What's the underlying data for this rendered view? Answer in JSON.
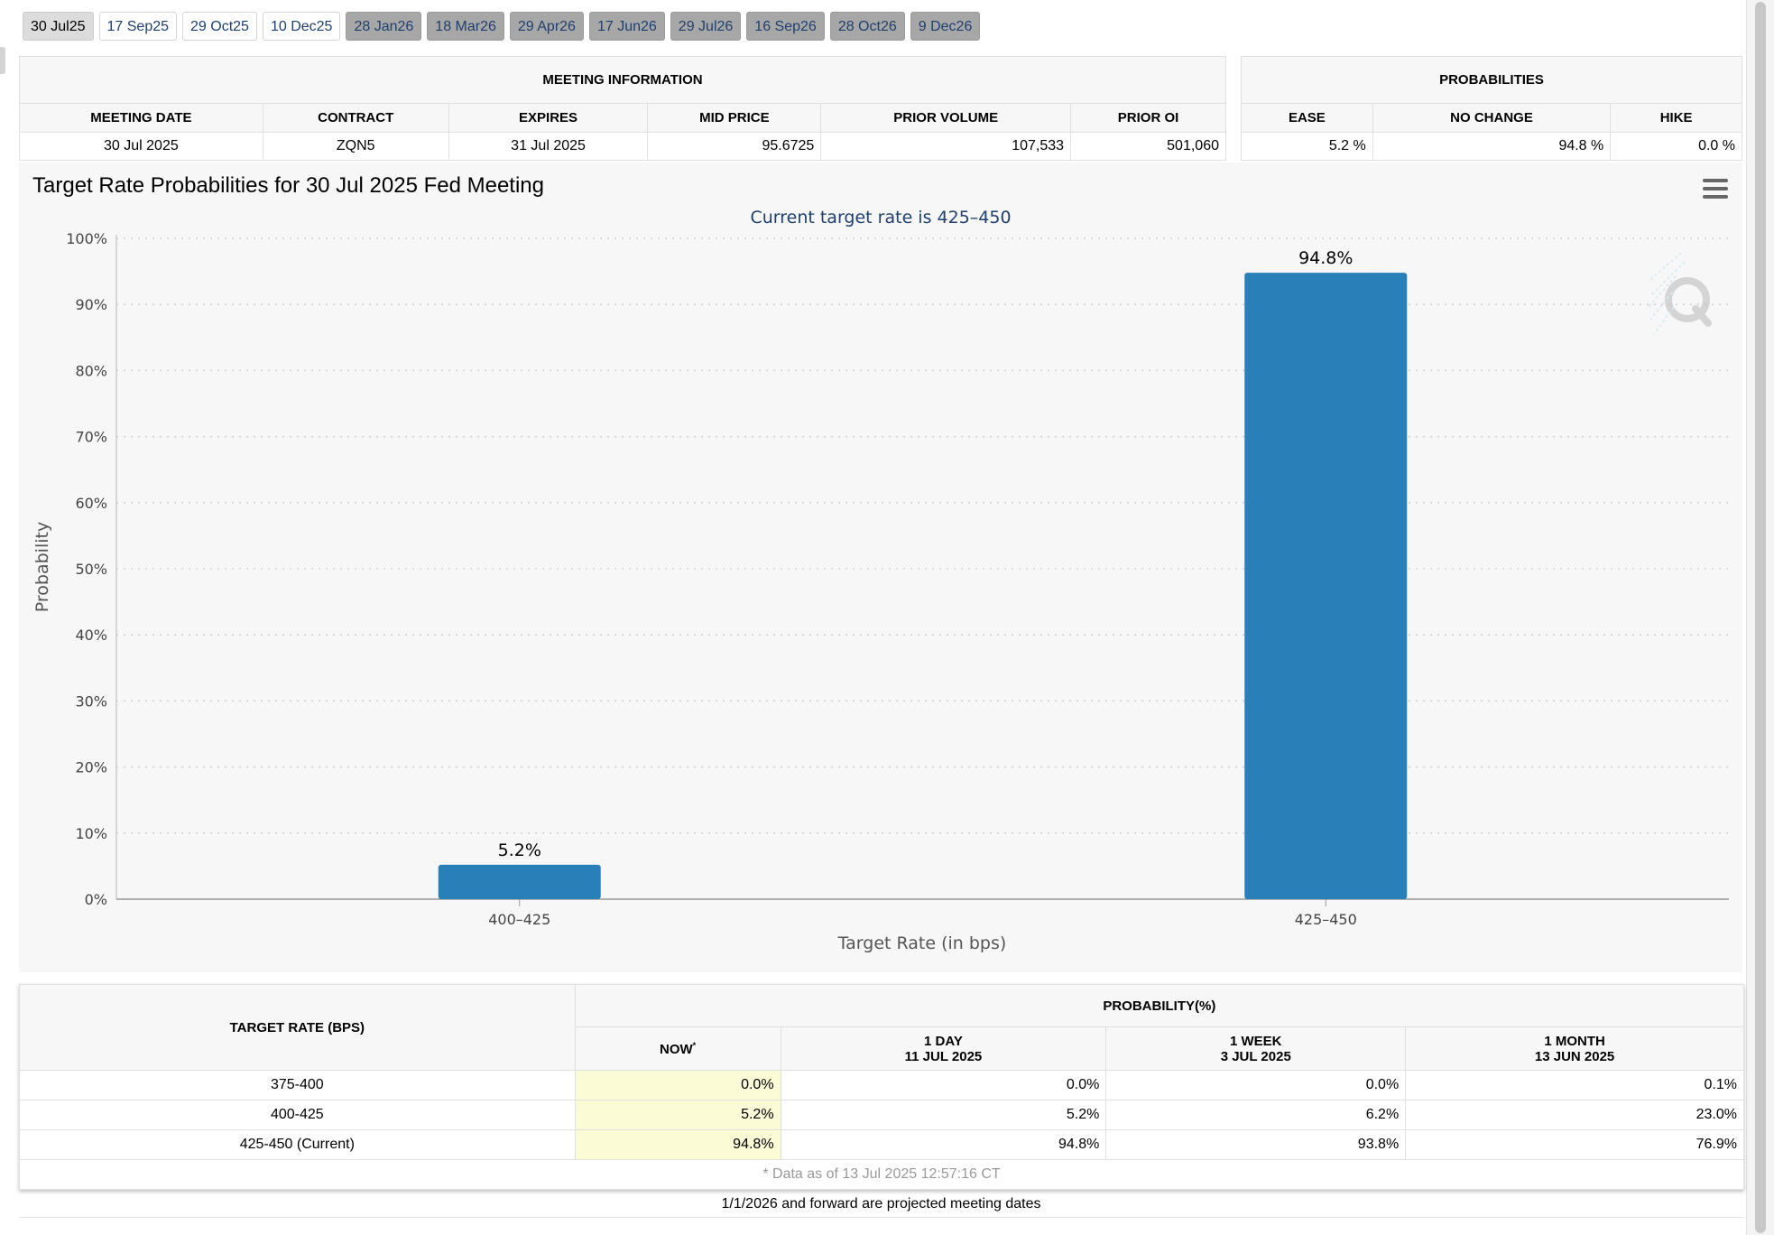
{
  "tabs": [
    {
      "label": "30 Jul25",
      "state": "selected"
    },
    {
      "label": "17 Sep25",
      "state": "active"
    },
    {
      "label": "29 Oct25",
      "state": "active"
    },
    {
      "label": "10 Dec25",
      "state": "active"
    },
    {
      "label": "28 Jan26",
      "state": "future"
    },
    {
      "label": "18 Mar26",
      "state": "future"
    },
    {
      "label": "29 Apr26",
      "state": "future"
    },
    {
      "label": "17 Jun26",
      "state": "future"
    },
    {
      "label": "29 Jul26",
      "state": "future"
    },
    {
      "label": "16 Sep26",
      "state": "future"
    },
    {
      "label": "28 Oct26",
      "state": "future"
    },
    {
      "label": "9 Dec26",
      "state": "future"
    }
  ],
  "meeting_info": {
    "title": "MEETING INFORMATION",
    "headers": [
      "MEETING DATE",
      "CONTRACT",
      "EXPIRES",
      "MID PRICE",
      "PRIOR VOLUME",
      "PRIOR OI"
    ],
    "row": [
      "30 Jul 2025",
      "ZQN5",
      "31 Jul 2025",
      "95.6725",
      "107,533",
      "501,060"
    ]
  },
  "probabilities": {
    "title": "PROBABILITIES",
    "headers": [
      "EASE",
      "NO CHANGE",
      "HIKE"
    ],
    "row": [
      "5.2 %",
      "94.8 %",
      "0.0 %"
    ]
  },
  "chart": {
    "title": "Target Rate Probabilities for 30 Jul 2025 Fed Meeting",
    "menu_icon": "hamburger-menu-icon",
    "watermark_icon": "cme-q-logo-icon",
    "bar_color": "#2980b9"
  },
  "chart_data": {
    "type": "bar",
    "subtitle": "Current target rate is 425–450",
    "categories": [
      "400–425",
      "425–450"
    ],
    "values": [
      5.2,
      94.8
    ],
    "data_labels": [
      "5.2%",
      "94.8%"
    ],
    "xlabel": "Target Rate (in bps)",
    "ylabel": "Probability",
    "ylim": [
      0,
      100
    ],
    "yticks": [
      0,
      10,
      20,
      30,
      40,
      50,
      60,
      70,
      80,
      90,
      100
    ],
    "ytick_labels": [
      "0%",
      "10%",
      "20%",
      "30%",
      "40%",
      "50%",
      "60%",
      "70%",
      "80%",
      "90%",
      "100%"
    ],
    "grid": true
  },
  "prob_table": {
    "rate_header": "TARGET RATE (BPS)",
    "group_header": "PROBABILITY(%)",
    "cols": [
      {
        "line1": "NOW",
        "line2": "",
        "mark": "*"
      },
      {
        "line1": "1 DAY",
        "line2": "11 JUL 2025",
        "mark": ""
      },
      {
        "line1": "1 WEEK",
        "line2": "3 JUL 2025",
        "mark": ""
      },
      {
        "line1": "1 MONTH",
        "line2": "13 JUN 2025",
        "mark": ""
      }
    ],
    "rows": [
      {
        "rate": "375-400",
        "values": [
          "0.0%",
          "0.0%",
          "0.0%",
          "0.1%"
        ]
      },
      {
        "rate": "400-425",
        "values": [
          "5.2%",
          "5.2%",
          "6.2%",
          "23.0%"
        ]
      },
      {
        "rate": "425-450 (Current)",
        "values": [
          "94.8%",
          "94.8%",
          "93.8%",
          "76.9%"
        ]
      }
    ],
    "footnote": "* Data as of 13 Jul 2025 12:57:16 CT"
  },
  "bottom_note": "1/1/2026 and forward are projected meeting dates"
}
